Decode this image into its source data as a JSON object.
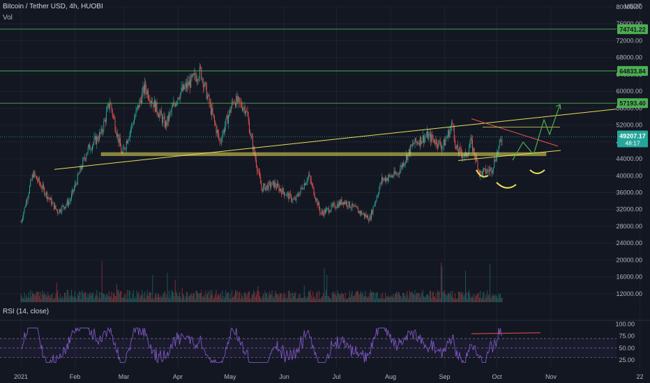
{
  "header": {
    "title": "Bitcoin / Tether USD, 4h, HUOBI",
    "vol_label": "Vol",
    "currency": "USDT",
    "rsi_label": "RSI (14, close)"
  },
  "colors": {
    "background": "#131722",
    "grid": "#1e222d",
    "up": "#26a69a",
    "down": "#ef5350",
    "level": "#4caf50",
    "trend": "#e8e05a",
    "rsi": "#7e57c2",
    "rsi_band": "#b39ddb",
    "resistance": "#ef5350",
    "forecast": "#4caf50",
    "price_tag": "#4caf50",
    "current_tag": "#26a69a"
  },
  "chart_data": [
    {
      "type": "candlestick",
      "title": "Bitcoin / Tether USD, 4h, HUOBI",
      "x_ticks": [
        "2021",
        "Feb",
        "Mar",
        "Apr",
        "May",
        "Jun",
        "Jul",
        "Aug",
        "Sep",
        "Oct",
        "Nov",
        "22"
      ],
      "ylim": [
        10000,
        80000
      ],
      "y_ticks": [
        80000,
        76000,
        72000,
        68000,
        64000,
        60000,
        56000,
        52000,
        48000,
        44000,
        40000,
        36000,
        32000,
        28000,
        24000,
        20000,
        16000,
        12000
      ],
      "y_tick_labels": [
        "80000.00",
        "76000.00",
        "72000.00",
        "68000.00",
        "64000.00",
        "60000.00",
        "56000.00",
        "52000.00",
        "48000.00",
        "44000.00",
        "40000.00",
        "36000.00",
        "32000.00",
        "28000.00",
        "24000.00",
        "20000.00",
        "16000.00",
        "12000.00"
      ],
      "price_path": [
        {
          "date": "2021-01-01",
          "close": 29000
        },
        {
          "date": "2021-01-08",
          "close": 40500
        },
        {
          "date": "2021-01-15",
          "close": 36000
        },
        {
          "date": "2021-01-22",
          "close": 31500
        },
        {
          "date": "2021-01-29",
          "close": 34000
        },
        {
          "date": "2021-02-08",
          "close": 46000
        },
        {
          "date": "2021-02-16",
          "close": 50000
        },
        {
          "date": "2021-02-21",
          "close": 57500
        },
        {
          "date": "2021-02-28",
          "close": 45000
        },
        {
          "date": "2021-03-13",
          "close": 61000
        },
        {
          "date": "2021-03-25",
          "close": 52000
        },
        {
          "date": "2021-04-01",
          "close": 59000
        },
        {
          "date": "2021-04-14",
          "close": 64800
        },
        {
          "date": "2021-04-25",
          "close": 48000
        },
        {
          "date": "2021-05-03",
          "close": 58000
        },
        {
          "date": "2021-05-10",
          "close": 56000
        },
        {
          "date": "2021-05-13",
          "close": 49000
        },
        {
          "date": "2021-05-19",
          "close": 37000
        },
        {
          "date": "2021-05-26",
          "close": 38000
        },
        {
          "date": "2021-06-07",
          "close": 34000
        },
        {
          "date": "2021-06-15",
          "close": 40000
        },
        {
          "date": "2021-06-22",
          "close": 31000
        },
        {
          "date": "2021-07-05",
          "close": 34000
        },
        {
          "date": "2021-07-20",
          "close": 29800
        },
        {
          "date": "2021-07-27",
          "close": 39000
        },
        {
          "date": "2021-08-05",
          "close": 40500
        },
        {
          "date": "2021-08-14",
          "close": 47500
        },
        {
          "date": "2021-08-22",
          "close": 49500
        },
        {
          "date": "2021-08-31",
          "close": 47000
        },
        {
          "date": "2021-09-06",
          "close": 52800
        },
        {
          "date": "2021-09-07",
          "close": 46500
        },
        {
          "date": "2021-09-13",
          "close": 44500
        },
        {
          "date": "2021-09-16",
          "close": 48000
        },
        {
          "date": "2021-09-20",
          "close": 42500
        },
        {
          "date": "2021-09-21",
          "close": 40500
        },
        {
          "date": "2021-09-28",
          "close": 41500
        },
        {
          "date": "2021-10-04",
          "close": 49207.17
        }
      ],
      "volume_ylim": [
        0,
        100000
      ],
      "levels": [
        {
          "label": "74741.22",
          "value": 74741.22
        },
        {
          "label": "64833.84",
          "value": 64833.84
        },
        {
          "label": "57193.40",
          "value": 57193.4
        }
      ],
      "current_price": {
        "label": "49207.17",
        "value": 49207.17,
        "countdown": "48:17"
      },
      "support_zone": [
        44700,
        45500
      ]
    },
    {
      "type": "line",
      "title": "RSI (14, close)",
      "ylim": [
        15,
        105
      ],
      "y_ticks": [
        100,
        75,
        50,
        25
      ],
      "y_tick_labels": [
        "100.00",
        "75.00",
        "50.00",
        "25.00"
      ],
      "bands": [
        70,
        50,
        30
      ]
    }
  ]
}
